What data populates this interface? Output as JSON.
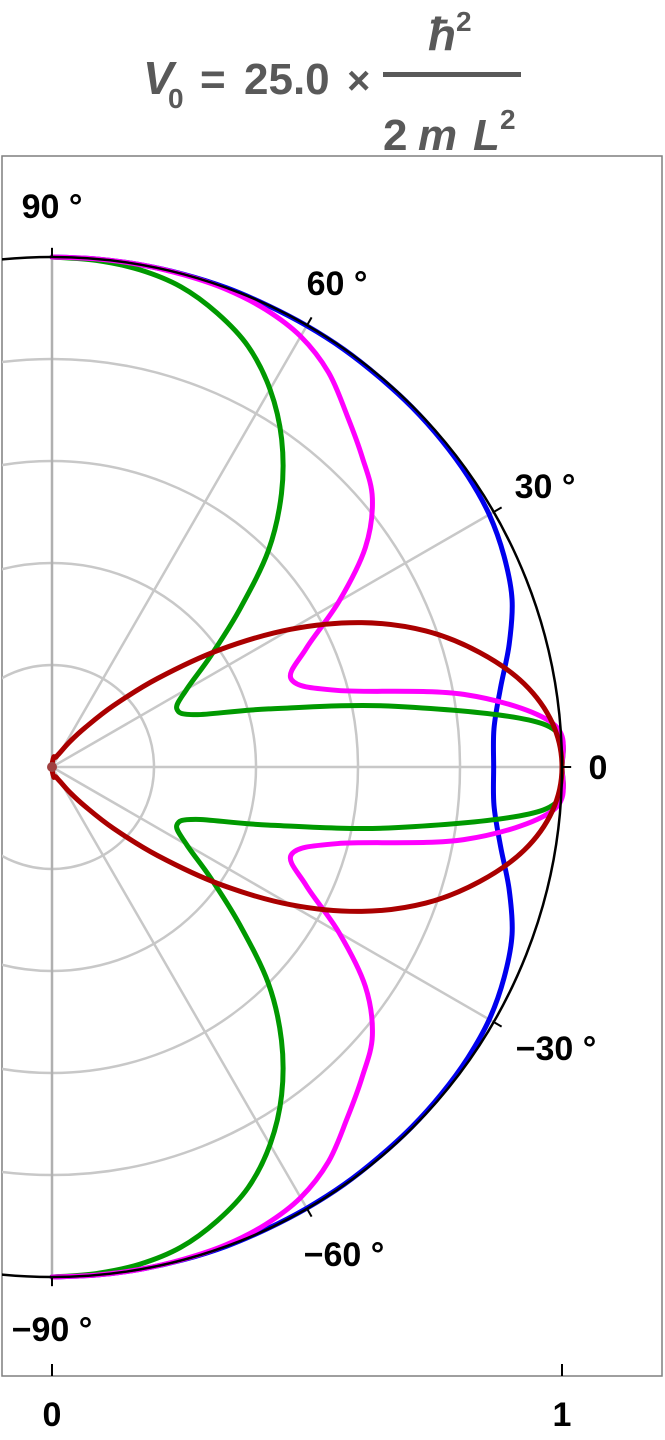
{
  "title": {
    "lhs_symbol": "V",
    "lhs_subscript": "0",
    "equals": "=",
    "coefficient": "25.0",
    "times": "×",
    "numerator_symbol": "ħ",
    "numerator_exponent": "2",
    "denominator_prefix": "2",
    "denominator_m": "m",
    "denominator_L": "L",
    "denominator_exponent": "2"
  },
  "chart_data": {
    "type": "polar-line",
    "title": "V0 = 25.0 × ħ^2 / (2 m L^2)",
    "theta_unit": "degrees",
    "theta_range": [
      -90,
      90
    ],
    "r_range": [
      0,
      1
    ],
    "grid": true,
    "angle_ticks": [
      {
        "angle": 90,
        "label": "90 °"
      },
      {
        "angle": 60,
        "label": "60 °"
      },
      {
        "angle": 30,
        "label": "30 °"
      },
      {
        "angle": 0,
        "label": "0"
      },
      {
        "angle": -30,
        "label": "−30 °"
      },
      {
        "angle": -60,
        "label": "−60 °"
      },
      {
        "angle": -90,
        "label": "−90 °"
      }
    ],
    "x_ticks": [
      {
        "value": 0,
        "label": "0"
      },
      {
        "value": 1,
        "label": "1"
      }
    ],
    "series": [
      {
        "color": "#0000ee",
        "theta": [
          0,
          5,
          10,
          15,
          20,
          25,
          30,
          35,
          40,
          45,
          50,
          55,
          60,
          65,
          70,
          75,
          80,
          85,
          90
        ],
        "r": [
          0.866,
          0.87,
          0.893,
          0.928,
          0.96,
          0.978,
          0.99,
          0.995,
          0.997,
          0.998,
          0.998,
          0.999,
          0.999,
          0.999,
          1.0,
          1.0,
          1.0,
          1.0,
          1.0
        ]
      },
      {
        "color": "#009900",
        "theta": [
          0,
          5,
          10,
          15,
          20,
          25,
          30,
          35,
          40,
          45,
          50,
          55,
          60,
          65,
          70,
          75,
          80,
          85,
          90
        ],
        "r": [
          1.0,
          0.967,
          0.685,
          0.44,
          0.3,
          0.27,
          0.305,
          0.38,
          0.48,
          0.6,
          0.7,
          0.785,
          0.855,
          0.91,
          0.947,
          0.975,
          0.99,
          0.997,
          1.0
        ]
      },
      {
        "color": "#ff00ff",
        "theta": [
          0,
          5,
          10,
          15,
          20,
          25,
          30,
          35,
          40,
          45,
          50,
          55,
          60,
          65,
          70,
          75,
          80,
          85,
          90
        ],
        "r": [
          1.0,
          0.985,
          0.82,
          0.58,
          0.5,
          0.55,
          0.65,
          0.75,
          0.82,
          0.86,
          0.9,
          0.945,
          0.975,
          0.99,
          0.997,
          0.999,
          1.0,
          1.0,
          1.0
        ]
      },
      {
        "color": "#aa0000",
        "theta": [
          0,
          5,
          10,
          15,
          20,
          25,
          30,
          35,
          40,
          45,
          50,
          55,
          60,
          65,
          70,
          75,
          80,
          85,
          90
        ],
        "r": [
          1.0,
          0.985,
          0.94,
          0.868,
          0.78,
          0.67,
          0.54,
          0.4,
          0.27,
          0.17,
          0.1,
          0.06,
          0.035,
          0.025,
          0.02,
          0.02,
          0.02,
          0.01,
          0.0
        ]
      }
    ]
  }
}
